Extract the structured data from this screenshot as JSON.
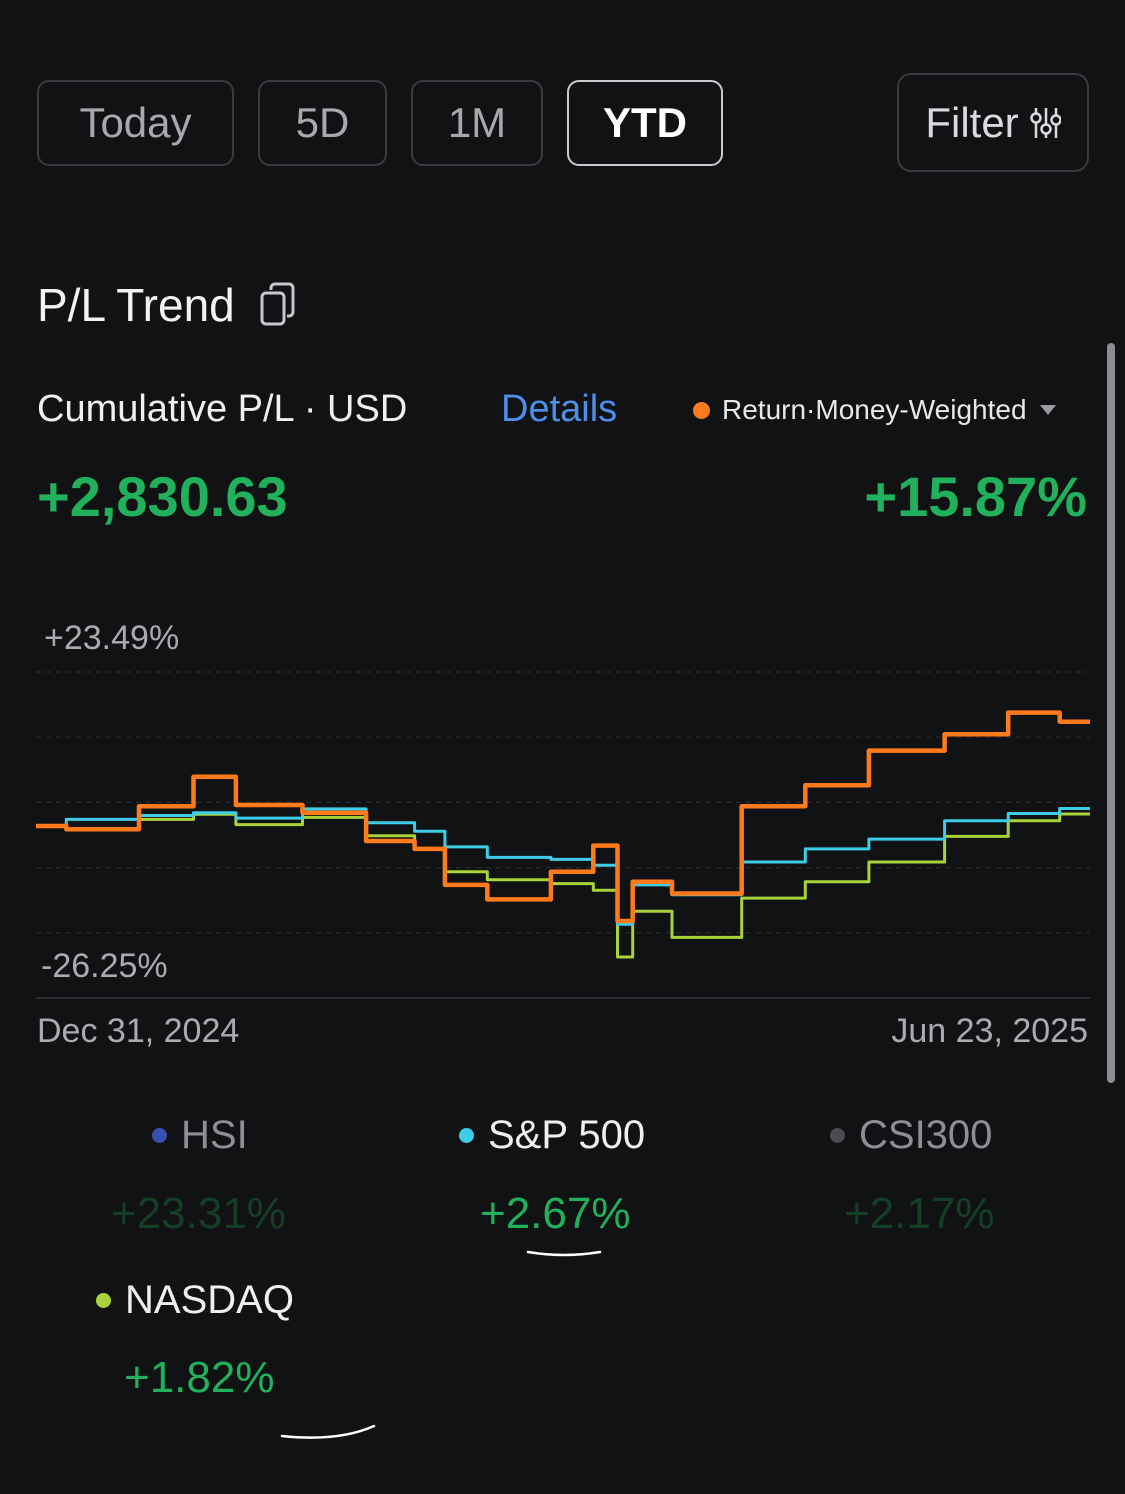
{
  "tabs": [
    {
      "label": "Today",
      "active": false
    },
    {
      "label": "5D",
      "active": false
    },
    {
      "label": "1M",
      "active": false
    },
    {
      "label": "YTD",
      "active": true
    }
  ],
  "filter": {
    "label": "Filter",
    "icon": "sliders-icon"
  },
  "section": {
    "title": "P/L Trend",
    "icon": "copy-icon"
  },
  "summary": {
    "subtitle": "Cumulative P/L · USD",
    "details_label": "Details",
    "return_type": "Return·Money-Weighted",
    "pl_value": "+2,830.63",
    "return_value": "+15.87%"
  },
  "colors": {
    "background": "#111214",
    "green": "#21b15c",
    "portfolio": "#ff7a1a",
    "sp500": "#3ecde8",
    "nasdaq": "#a8d33a",
    "hsi": "#3b4fb0",
    "csi300": "#4a4c52",
    "link": "#4d8fe8"
  },
  "chart_data": {
    "type": "line",
    "y_max_label": "+23.49%",
    "y_min_label": "-26.25%",
    "ylim": [
      -26.25,
      23.49
    ],
    "x_start_label": "Dec 31, 2024",
    "x_end_label": "Jun 23, 2025",
    "x_range": [
      "2024-12-31",
      "2025-06-23"
    ],
    "series": [
      {
        "name": "Return·Money-Weighted",
        "x": [
          "2024-12-31",
          "2025-01-10",
          "2025-01-24",
          "2025-01-28",
          "2025-02-07",
          "2025-02-19",
          "2025-02-28",
          "2025-03-07",
          "2025-03-10",
          "2025-03-21",
          "2025-03-31",
          "2025-04-04",
          "2025-04-08",
          "2025-04-09",
          "2025-04-21",
          "2025-05-02",
          "2025-05-12",
          "2025-05-23",
          "2025-06-06",
          "2025-06-13",
          "2025-06-23"
        ],
        "values": [
          0.0,
          -0.5,
          3.0,
          7.5,
          3.2,
          2.0,
          -2.3,
          -3.5,
          -9.0,
          -11.2,
          -7.0,
          -3.0,
          -14.5,
          -8.5,
          -10.3,
          3.0,
          6.2,
          11.5,
          14.0,
          17.3,
          15.9
        ]
      },
      {
        "name": "S&P 500",
        "x": [
          "2024-12-31",
          "2025-01-10",
          "2025-01-24",
          "2025-01-28",
          "2025-02-07",
          "2025-02-19",
          "2025-02-28",
          "2025-03-07",
          "2025-03-10",
          "2025-03-21",
          "2025-03-31",
          "2025-04-04",
          "2025-04-08",
          "2025-04-09",
          "2025-04-21",
          "2025-05-02",
          "2025-05-12",
          "2025-05-23",
          "2025-06-06",
          "2025-06-13",
          "2025-06-23"
        ],
        "values": [
          0.0,
          1.0,
          1.6,
          2.0,
          1.2,
          2.6,
          0.5,
          -0.8,
          -3.2,
          -4.8,
          -5.1,
          -6.0,
          -15.0,
          -9.0,
          -10.5,
          -5.5,
          -3.5,
          -2.0,
          0.8,
          1.9,
          2.67
        ]
      },
      {
        "name": "NASDAQ",
        "x": [
          "2024-12-31",
          "2025-01-10",
          "2025-01-24",
          "2025-01-28",
          "2025-02-07",
          "2025-02-19",
          "2025-02-28",
          "2025-03-07",
          "2025-03-10",
          "2025-03-21",
          "2025-03-31",
          "2025-04-04",
          "2025-04-08",
          "2025-04-09",
          "2025-04-21",
          "2025-05-02",
          "2025-05-12",
          "2025-05-23",
          "2025-06-06",
          "2025-06-13",
          "2025-06-23"
        ],
        "values": [
          0.0,
          -0.5,
          1.0,
          1.8,
          0.2,
          1.3,
          -1.5,
          -3.5,
          -7.0,
          -8.2,
          -8.8,
          -9.8,
          -20.0,
          -13.0,
          -17.0,
          -11.0,
          -8.5,
          -5.5,
          -1.6,
          0.8,
          1.82
        ]
      }
    ],
    "legend": [
      {
        "name": "HSI",
        "value": "+23.31%",
        "visible": false
      },
      {
        "name": "S&P 500",
        "value": "+2.67%",
        "visible": true
      },
      {
        "name": "CSI300",
        "value": "+2.17%",
        "visible": false
      },
      {
        "name": "NASDAQ",
        "value": "+1.82%",
        "visible": true
      }
    ],
    "grid": "dashed horizontal"
  }
}
